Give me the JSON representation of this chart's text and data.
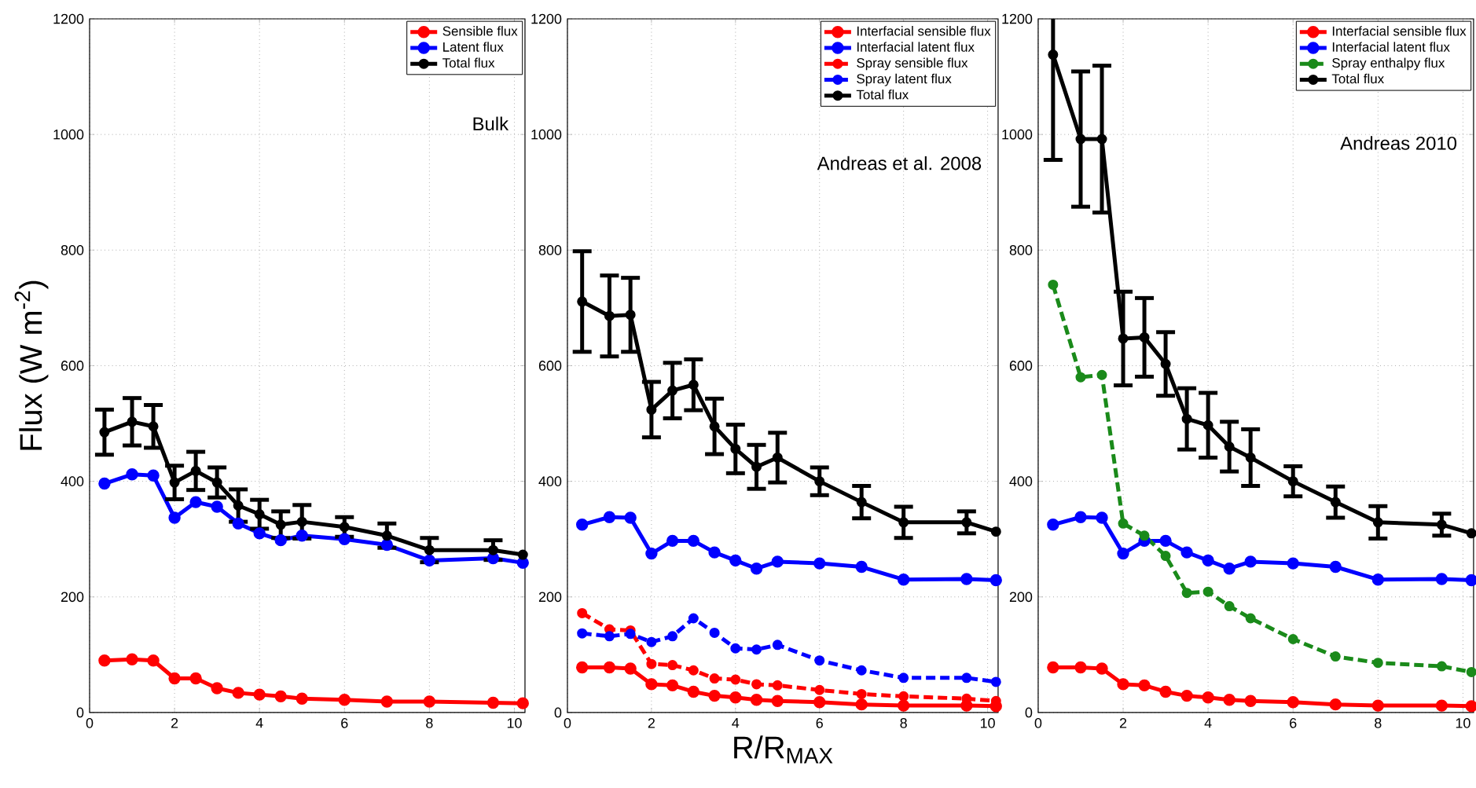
{
  "chart_data": [
    {
      "type": "line",
      "ylabel": "Flux (W m$^{-2}$)",
      "x": [
        0.35,
        1,
        1.5,
        2,
        2.5,
        3,
        3.5,
        4,
        4.5,
        5,
        6,
        7,
        8,
        9.5,
        10.2
      ],
      "xlim": [
        0,
        10.25
      ],
      "ylim": [
        0,
        1200
      ],
      "xticks": [
        0,
        2,
        4,
        6,
        8,
        10
      ],
      "yticks": [
        0,
        200,
        400,
        600,
        800,
        1000,
        1200
      ],
      "grid": true,
      "legend": "top right",
      "annotations": [
        "Bulk"
      ],
      "series": [
        {
          "name": "Sensible flux",
          "color": "#ff0000",
          "marker": "circle",
          "line_style": "solid",
          "values": [
            90,
            92,
            90,
            59,
            59,
            42,
            34,
            31,
            28,
            24,
            22,
            19,
            19,
            17,
            16
          ]
        },
        {
          "name": "Latent flux",
          "color": "#0000ff",
          "marker": "circle",
          "line_style": "solid",
          "values": [
            396,
            412,
            410,
            337,
            364,
            356,
            327,
            310,
            298,
            306,
            300,
            290,
            263,
            267,
            259
          ]
        },
        {
          "name": "Total flux",
          "color": "#000000",
          "marker": "circle",
          "line_style": "solid",
          "values": [
            485,
            503,
            495,
            398,
            418,
            398,
            358,
            343,
            325,
            330,
            321,
            306,
            281,
            281,
            273
          ],
          "errors": [
            39,
            41,
            37,
            29,
            33,
            26,
            28,
            25,
            23,
            29,
            17,
            21,
            21,
            17,
            null
          ]
        }
      ]
    },
    {
      "type": "line",
      "xlabel": "R/R$_{MAX}$",
      "x": [
        0.35,
        1,
        1.5,
        2,
        2.5,
        3,
        3.5,
        4,
        4.5,
        5,
        6,
        7,
        8,
        9.5,
        10.2
      ],
      "xlim": [
        0,
        10.25
      ],
      "ylim": [
        0,
        1200
      ],
      "xticks": [
        0,
        2,
        4,
        6,
        8,
        10
      ],
      "yticks": [
        0,
        200,
        400,
        600,
        800,
        1000,
        1200
      ],
      "grid": true,
      "legend": "top right",
      "annotations": [
        "Andreas et al. 2008"
      ],
      "series": [
        {
          "name": "Interfacial sensible flux",
          "color": "#ff0000",
          "marker": "circle",
          "line_style": "solid",
          "values": [
            78,
            78,
            76,
            49,
            47,
            36,
            29,
            26,
            22,
            20,
            18,
            14,
            12,
            12,
            11
          ]
        },
        {
          "name": "Interfacial latent flux",
          "color": "#0000ff",
          "marker": "circle",
          "line_style": "solid",
          "values": [
            325,
            338,
            337,
            275,
            297,
            297,
            277,
            263,
            249,
            261,
            258,
            252,
            230,
            231,
            229
          ]
        },
        {
          "name": "Spray sensible flux",
          "color": "#ff0000",
          "marker": "circle",
          "line_style": "dashed",
          "values": [
            172,
            144,
            142,
            84,
            82,
            73,
            59,
            57,
            49,
            47,
            39,
            32,
            28,
            24,
            20
          ]
        },
        {
          "name": "Spray latent flux",
          "color": "#0000ff",
          "marker": "circle",
          "line_style": "dashed",
          "values": [
            137,
            132,
            136,
            122,
            132,
            163,
            138,
            111,
            109,
            117,
            90,
            73,
            60,
            60,
            53
          ]
        },
        {
          "name": "Total flux",
          "color": "#000000",
          "marker": "circle",
          "line_style": "solid",
          "values": [
            711,
            686,
            688,
            524,
            557,
            567,
            495,
            456,
            425,
            441,
            400,
            364,
            329,
            329,
            313
          ],
          "errors": [
            87,
            70,
            64,
            48,
            48,
            44,
            48,
            42,
            38,
            43,
            24,
            28,
            27,
            19,
            null
          ]
        }
      ]
    },
    {
      "type": "line",
      "x": [
        0.35,
        1,
        1.5,
        2,
        2.5,
        3,
        3.5,
        4,
        4.5,
        5,
        6,
        7,
        8,
        9.5,
        10.2
      ],
      "xlim": [
        0,
        10.25
      ],
      "ylim": [
        0,
        1200
      ],
      "xticks": [
        0,
        2,
        4,
        6,
        8,
        10
      ],
      "yticks": [
        0,
        200,
        400,
        600,
        800,
        1000,
        1200
      ],
      "grid": true,
      "legend": "top right",
      "annotations": [
        "Andreas 2010"
      ],
      "series": [
        {
          "name": "Interfacial sensible flux",
          "color": "#ff0000",
          "marker": "circle",
          "line_style": "solid",
          "values": [
            78,
            78,
            76,
            49,
            47,
            36,
            29,
            26,
            22,
            20,
            18,
            14,
            12,
            12,
            11
          ]
        },
        {
          "name": "Interfacial latent flux",
          "color": "#0000ff",
          "marker": "circle",
          "line_style": "solid",
          "values": [
            325,
            338,
            337,
            275,
            297,
            297,
            277,
            263,
            249,
            261,
            258,
            252,
            230,
            231,
            229
          ]
        },
        {
          "name": "Spray enthalpy flux",
          "color": "#1a8a1a",
          "marker": "circle",
          "line_style": "dashed",
          "values": [
            740,
            580,
            584,
            327,
            306,
            271,
            207,
            209,
            184,
            163,
            127,
            97,
            86,
            80,
            70
          ]
        },
        {
          "name": "Total flux",
          "color": "#000000",
          "marker": "circle",
          "line_style": "solid",
          "values": [
            1138,
            992,
            992,
            647,
            649,
            603,
            508,
            497,
            460,
            441,
            400,
            364,
            329,
            325,
            310
          ],
          "errors": [
            182,
            117,
            127,
            81,
            68,
            55,
            53,
            56,
            43,
            49,
            26,
            27,
            28,
            19,
            null
          ]
        }
      ]
    }
  ]
}
